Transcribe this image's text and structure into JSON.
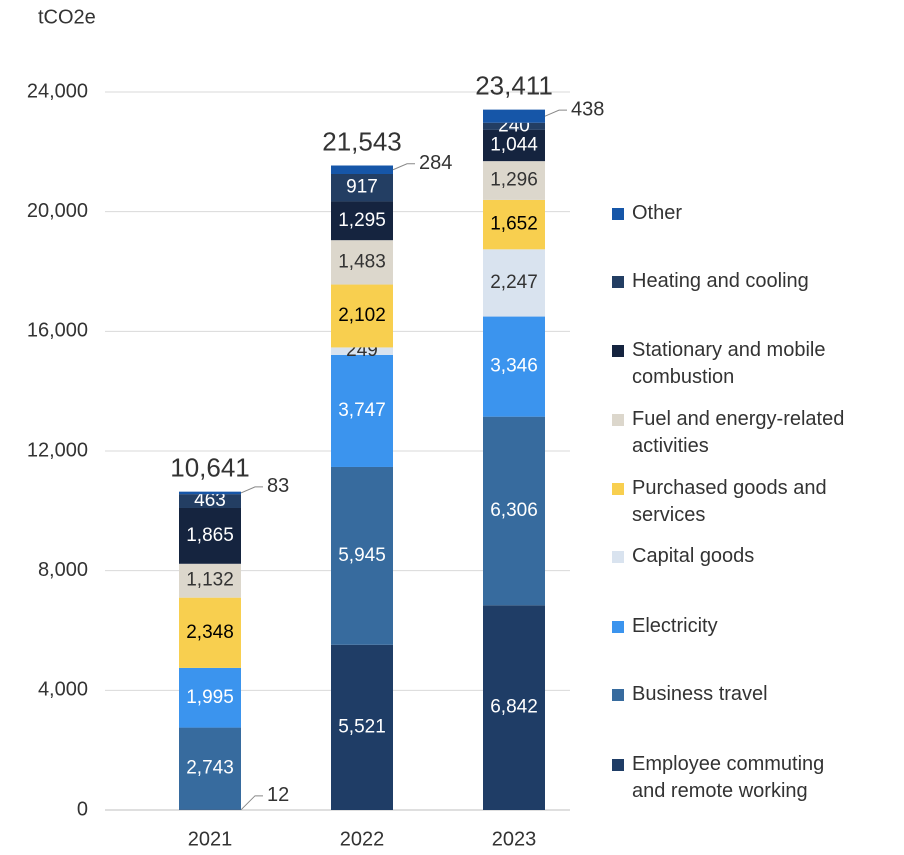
{
  "chart_data": {
    "type": "stacked_bar",
    "y_label": "tCO2e",
    "categories": [
      "2021",
      "2022",
      "2023"
    ],
    "series": [
      {
        "name": "Employee commuting and remote working",
        "color": "#1f3d66",
        "values": [
          12,
          5521,
          6842
        ],
        "value_labels": [
          "12",
          "5,521",
          "6,842"
        ]
      },
      {
        "name": "Business travel",
        "color": "#376b9e",
        "values": [
          2743,
          5945,
          6306
        ],
        "value_labels": [
          "2,743",
          "5,945",
          "6,306"
        ]
      },
      {
        "name": "Electricity",
        "color": "#3b94ee",
        "values": [
          1995,
          3747,
          3346
        ],
        "value_labels": [
          "1,995",
          "3,747",
          "3,346"
        ]
      },
      {
        "name": "Capital goods",
        "color": "#d9e3ef",
        "values": [
          null,
          249,
          2247
        ],
        "value_labels": [
          null,
          "249",
          "2,247"
        ]
      },
      {
        "name": "Purchased goods and services",
        "color": "#f8cf4f",
        "values": [
          2348,
          2102,
          1652
        ],
        "value_labels": [
          "2,348",
          "2,102",
          "1,652"
        ]
      },
      {
        "name": "Fuel and energy-related activities",
        "color": "#dcd7cc",
        "values": [
          1132,
          1483,
          1296
        ],
        "value_labels": [
          "1,132",
          "1,483",
          "1,296"
        ]
      },
      {
        "name": "Stationary and mobile combustion",
        "color": "#15243f",
        "values": [
          1865,
          1295,
          1044
        ],
        "value_labels": [
          "1,865",
          "1,295",
          "1,044"
        ]
      },
      {
        "name": "Heating and cooling",
        "color": "#233e63",
        "values": [
          463,
          917,
          240
        ],
        "value_labels": [
          "463",
          "917",
          "240"
        ]
      },
      {
        "name": "Other",
        "color": "#1656a8",
        "values": [
          83,
          284,
          438
        ],
        "value_labels": [
          "83",
          "284",
          "438"
        ]
      }
    ],
    "totals": [
      10641,
      21543,
      23411
    ],
    "total_labels": [
      "10,641",
      "21,543",
      "23,411"
    ],
    "ylim": [
      0,
      24000
    ],
    "yticks": [
      0,
      {
        "value": 4000,
        "label": "4,000"
      },
      {
        "value": 8000,
        "label": "8,000"
      },
      {
        "value": 12000,
        "label": "12,000"
      },
      {
        "value": 16000,
        "label": "16,000"
      },
      {
        "value": 20000,
        "label": "20,000"
      },
      {
        "value": 24000,
        "label": "24,000"
      }
    ],
    "grid": true,
    "legend": "right"
  }
}
